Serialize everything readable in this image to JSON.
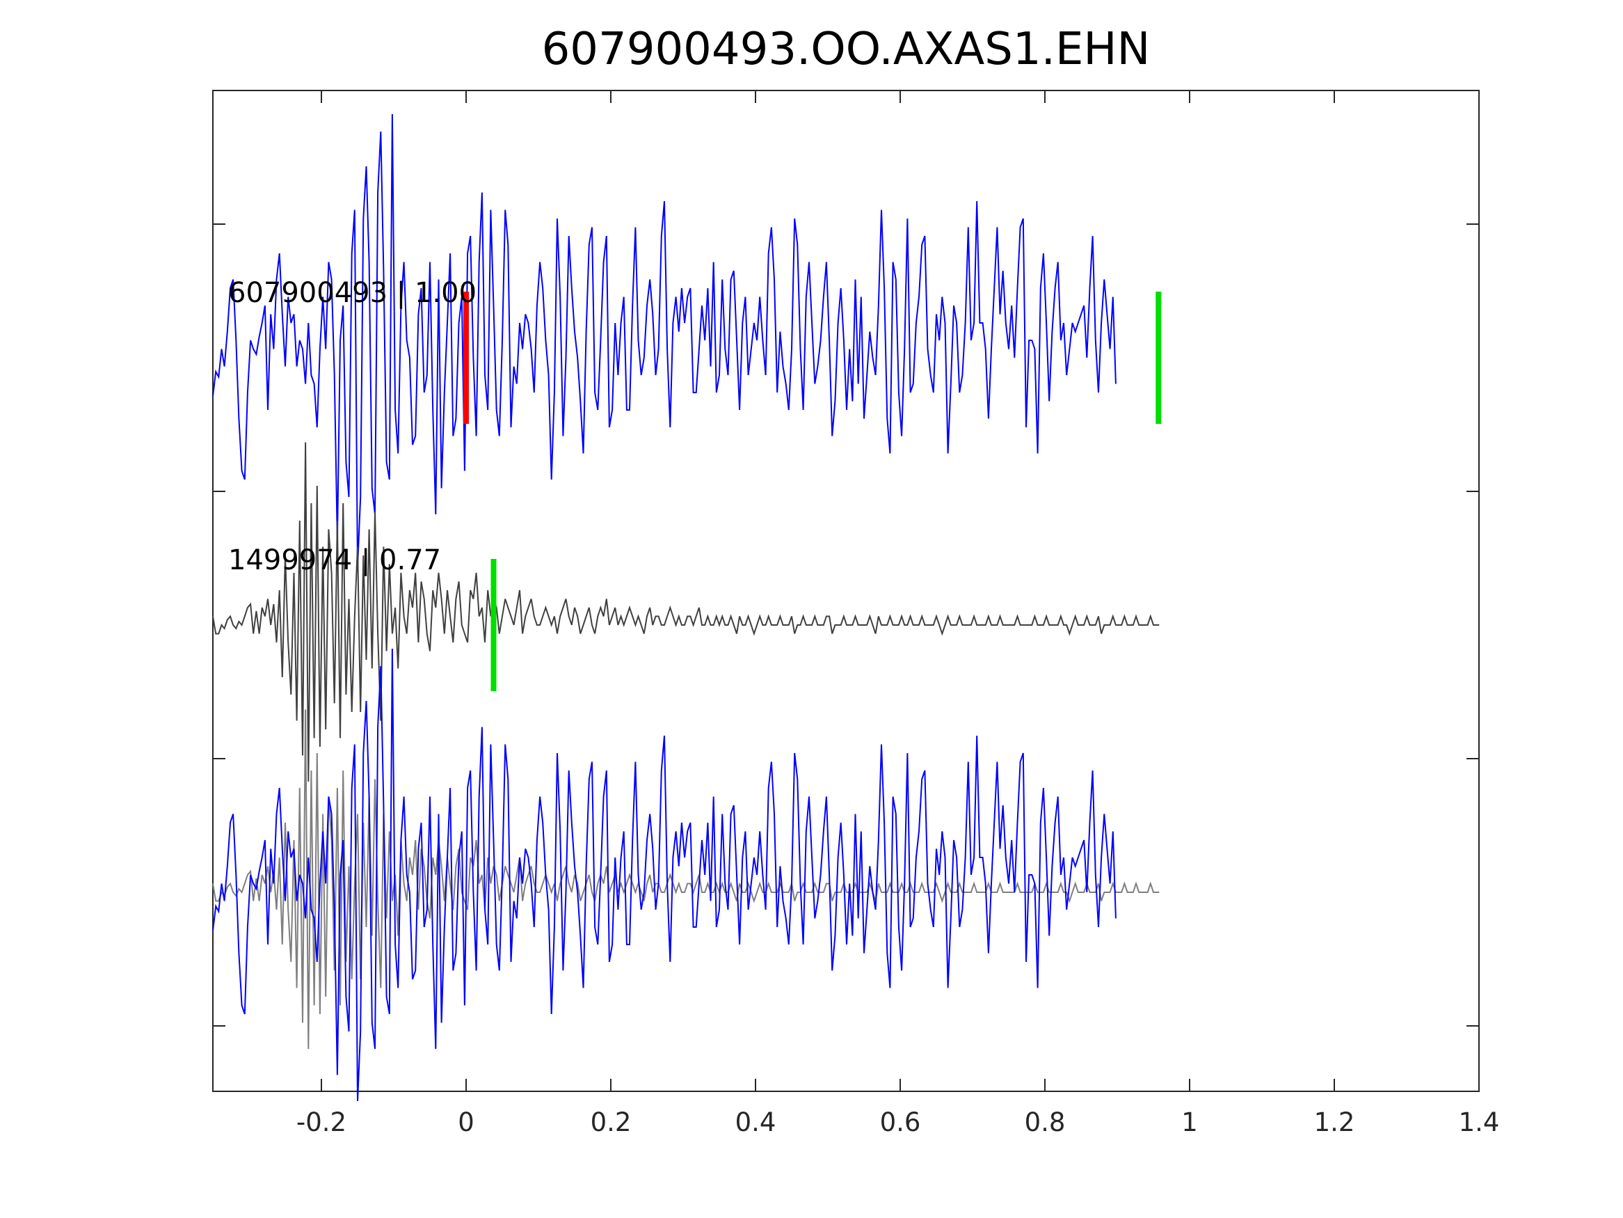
{
  "chart_data": {
    "type": "line",
    "title": "607900493.OO.AXAS1.EHN",
    "xlabel": "",
    "ylabel": "",
    "xlim": [
      -0.35,
      1.4
    ],
    "x_ticks": [
      -0.2,
      0,
      0.2,
      0.4,
      0.6,
      0.8,
      1,
      1.2,
      1.4
    ],
    "x_tick_labels": [
      "-0.2",
      "0",
      "0.2",
      "0.4",
      "0.6",
      "0.8",
      "1",
      "1.2",
      "1.4"
    ],
    "y_ticks_labeled": false,
    "grid": false,
    "colors": {
      "main": "#0000ff",
      "template": "#404040",
      "template_overlay": "#7f7f7f",
      "pick_red": "#ff0000",
      "pick_green": "#00dd00"
    },
    "panels": [
      {
        "label": "607900493 | 1.00",
        "trace": "main",
        "picks": [
          {
            "t": 0.0,
            "color": "red"
          },
          {
            "t": 0.957,
            "color": "green"
          }
        ]
      },
      {
        "label": "1499974 | 0.77",
        "trace": "template",
        "picks": [
          {
            "t": 0.038,
            "color": "green"
          }
        ]
      },
      {
        "label": "",
        "trace": "overlay",
        "picks": []
      }
    ],
    "series": [
      {
        "id": "main",
        "sample_interval": 0.004,
        "t_start": -0.35,
        "values": [
          -0.22,
          -0.08,
          -0.11,
          0.05,
          -0.05,
          0.15,
          0.4,
          0.45,
          0.1,
          -0.35,
          -0.65,
          -0.7,
          -0.2,
          0.1,
          0.05,
          0.02,
          0.12,
          0.2,
          0.3,
          -0.3,
          0.25,
          0.05,
          0.45,
          0.6,
          0.25,
          -0.05,
          0.35,
          0.2,
          0.25,
          -0.05,
          0.1,
          0.05,
          -0.15,
          0.2,
          -0.1,
          -0.15,
          -0.4,
          0.05,
          0.35,
          0.05,
          0.55,
          0.45,
          -0.1,
          -1.05,
          0.1,
          0.3,
          -0.6,
          -0.8,
          0.6,
          0.85,
          -1.2,
          -0.8,
          0.8,
          1.1,
          0.55,
          -0.75,
          -0.9,
          0.95,
          1.3,
          0.5,
          -0.6,
          -0.7,
          1.4,
          -0.3,
          -0.55,
          0.3,
          0.55,
          0.1,
          0.0,
          -0.5,
          -0.45,
          0.25,
          0.4,
          -0.2,
          -0.1,
          0.55,
          -0.3,
          -0.9,
          0.45,
          -0.75,
          -0.2,
          0.2,
          0.6,
          -0.45,
          -0.35,
          0.2,
          0.35,
          -0.65,
          0.6,
          0.7,
          0.0,
          -0.45,
          0.55,
          0.95,
          -0.1,
          -0.3,
          0.85,
          0.3,
          -0.3,
          -0.45,
          0.1,
          0.85,
          0.65,
          -0.4,
          -0.05,
          -0.15,
          0.2,
          0.05,
          0.25,
          0.2,
          0.05,
          -0.2,
          0.3,
          0.55,
          0.4,
          0.1,
          -0.1,
          -0.7,
          -0.2,
          0.8,
          0.35,
          -0.45,
          0.0,
          0.7,
          0.4,
          0.15,
          0.0,
          -0.25,
          -0.55,
          0.15,
          0.65,
          0.75,
          -0.2,
          -0.3,
          0.1,
          0.55,
          0.7,
          -0.4,
          -0.3,
          0.2,
          -0.1,
          0.2,
          0.35,
          -0.3,
          -0.3,
          0.3,
          0.75,
          0.1,
          -0.1,
          0.0,
          0.3,
          0.45,
          0.25,
          -0.1,
          0.05,
          0.7,
          0.9,
          0.05,
          -0.4,
          0.2,
          0.35,
          0.15,
          0.4,
          0.2,
          0.35,
          0.4,
          -0.2,
          -0.2,
          0.05,
          0.3,
          0.1,
          0.4,
          -0.05,
          0.55,
          -0.2,
          -0.1,
          0.45,
          0.05,
          -0.1,
          0.45,
          0.5,
          0.1,
          -0.3,
          0.2,
          0.35,
          -0.1,
          0.05,
          0.2,
          0.1,
          0.35,
          0.1,
          -0.1,
          0.6,
          0.75,
          0.45,
          -0.2,
          0.15,
          -0.05,
          -0.15,
          -0.3,
          0.05,
          0.8,
          0.65,
          0.05,
          -0.3,
          0.35,
          0.55,
          0.2,
          -0.15,
          -0.05,
          0.1,
          0.35,
          0.55,
          0.1,
          -0.45,
          -0.25,
          0.2,
          0.4,
          0.1,
          -0.3,
          0.05,
          -0.25,
          0.45,
          -0.15,
          0.35,
          -0.35,
          -0.1,
          0.15,
          0.0,
          -0.1,
          0.3,
          0.85,
          0.4,
          -0.35,
          -0.55,
          0.55,
          0.45,
          -0.2,
          -0.45,
          0.05,
          0.8,
          -0.2,
          -0.15,
          0.2,
          0.35,
          0.65,
          0.7,
          0.05,
          -0.1,
          -0.2,
          0.25,
          0.1,
          0.35,
          0.2,
          -0.55,
          -0.15,
          0.3,
          0.2,
          -0.2,
          -0.1,
          0.2,
          0.75,
          0.1,
          0.2,
          0.9,
          0.2,
          0.2,
          0.05,
          -0.35,
          0.05,
          0.4,
          0.75,
          0.25,
          0.5,
          0.2,
          0.05,
          0.3,
          0.0,
          0.4,
          0.75,
          0.8,
          -0.4,
          0.1,
          0.1,
          0.05,
          -0.55,
          0.4,
          0.6,
          0.2,
          -0.25,
          0.15,
          0.4,
          0.55,
          0.1,
          0.2,
          -0.1,
          0.05,
          0.2,
          0.15,
          0.2,
          0.25,
          0.3,
          0.0,
          0.4,
          0.7,
          0.1,
          -0.2,
          0.2,
          0.45,
          0.25,
          0.05,
          0.35,
          -0.15
        ]
      },
      {
        "id": "template",
        "sample_interval": 0.004,
        "t_start": -0.35,
        "values": [
          0.05,
          -0.05,
          -0.05,
          0.0,
          -0.02,
          0.03,
          0.05,
          0.0,
          -0.02,
          0.02,
          0.0,
          0.05,
          0.1,
          0.12,
          -0.05,
          0.08,
          -0.05,
          0.1,
          0.05,
          0.15,
          0.0,
          0.12,
          -0.1,
          0.2,
          -0.3,
          0.4,
          -0.1,
          -0.4,
          0.3,
          -0.55,
          0.6,
          -0.75,
          1.05,
          -0.9,
          0.7,
          -0.65,
          0.8,
          -0.7,
          0.45,
          -0.6,
          0.55,
          0.3,
          -0.45,
          0.6,
          -0.65,
          0.7,
          -0.4,
          0.15,
          -0.5,
          0.05,
          0.45,
          -0.5,
          0.4,
          -0.2,
          0.55,
          -0.25,
          0.65,
          -0.05,
          -0.55,
          0.45,
          -0.15,
          0.35,
          -0.05,
          0.1,
          -0.25,
          0.3,
          0.05,
          -0.05,
          0.2,
          0.1,
          0.3,
          -0.1,
          0.25,
          0.15,
          -0.05,
          -0.15,
          0.2,
          0.1,
          0.3,
          0.15,
          -0.05,
          0.2,
          0.05,
          -0.1,
          0.15,
          0.25,
          0.0,
          -0.05,
          -0.1,
          0.2,
          0.15,
          0.3,
          0.05,
          0.1,
          -0.1,
          0.2,
          0.05,
          0.15,
          0.1,
          -0.05,
          0.05,
          0.15,
          0.1,
          0.05,
          0.0,
          0.1,
          0.2,
          -0.05,
          0.05,
          0.1,
          0.15,
          0.05,
          0.0,
          0.0,
          0.05,
          0.1,
          0.05,
          0.0,
          0.05,
          -0.05,
          0.05,
          0.1,
          0.15,
          0.05,
          0.0,
          0.1,
          0.05,
          -0.05,
          0.0,
          0.05,
          0.1,
          0.0,
          -0.05,
          0.05,
          0.1,
          0.05,
          0.15,
          0.0,
          0.05,
          0.1,
          0.0,
          0.05,
          0.0,
          0.05,
          0.1,
          0.05,
          0.0,
          0.05,
          0.0,
          -0.05,
          0.05,
          0.1,
          0.0,
          0.05,
          0.05,
          0.0,
          0.0,
          0.05,
          0.1,
          0.05,
          0.0,
          0.05,
          0.0,
          0.0,
          0.05,
          0.05,
          0.0,
          0.05,
          0.1,
          0.0,
          0.0,
          0.05,
          0.0,
          0.0,
          0.05,
          0.0,
          0.05,
          0.0,
          0.0,
          0.05,
          0.0,
          -0.05,
          0.05,
          0.0,
          0.0,
          0.05,
          0.0,
          -0.05,
          0.0,
          0.05,
          0.0,
          0.0,
          0.05,
          0.0,
          0.0,
          0.0,
          0.05,
          0.0,
          0.0,
          0.0,
          0.05,
          -0.05,
          0.0,
          0.0,
          0.05,
          0.0,
          0.0,
          0.0,
          0.05,
          0.0,
          0.0,
          0.0,
          0.05,
          0.05,
          -0.05,
          0.0,
          0.0,
          0.0,
          0.05,
          0.0,
          0.0,
          0.0,
          0.05,
          0.0,
          0.0,
          0.0,
          0.0,
          0.05,
          0.0,
          -0.05,
          0.05,
          0.0,
          0.0,
          0.0,
          0.05,
          0.0,
          0.0,
          0.0,
          0.05,
          0.0,
          0.0,
          0.05,
          0.0,
          0.0,
          0.0,
          0.05,
          0.0,
          0.0,
          0.0,
          0.0,
          0.05,
          0.0,
          -0.05,
          0.0,
          0.05,
          0.0,
          0.0,
          0.0,
          0.05,
          0.0,
          0.0,
          0.0,
          0.0,
          0.05,
          0.0,
          0.0,
          0.0,
          0.0,
          0.05,
          0.0,
          0.0,
          0.0,
          0.05,
          0.0,
          0.0,
          0.0,
          0.0,
          0.0,
          0.05,
          0.0,
          0.0,
          0.0,
          0.0,
          0.0,
          0.05,
          0.0,
          0.0,
          0.0,
          0.05,
          0.0,
          0.0,
          0.0,
          0.0,
          0.05,
          0.0,
          0.0,
          -0.05,
          0.0,
          0.05,
          0.0,
          0.0,
          0.0,
          0.05,
          0.0,
          0.0,
          0.0,
          0.05,
          -0.05,
          0.0,
          0.0,
          0.0,
          0.05,
          0.0,
          0.0,
          0.0,
          0.05,
          0.0,
          0.0,
          0.0,
          0.05,
          0.0,
          0.0,
          0.0,
          0.0,
          0.05,
          0.0,
          0.0,
          0.0
        ]
      }
    ]
  }
}
